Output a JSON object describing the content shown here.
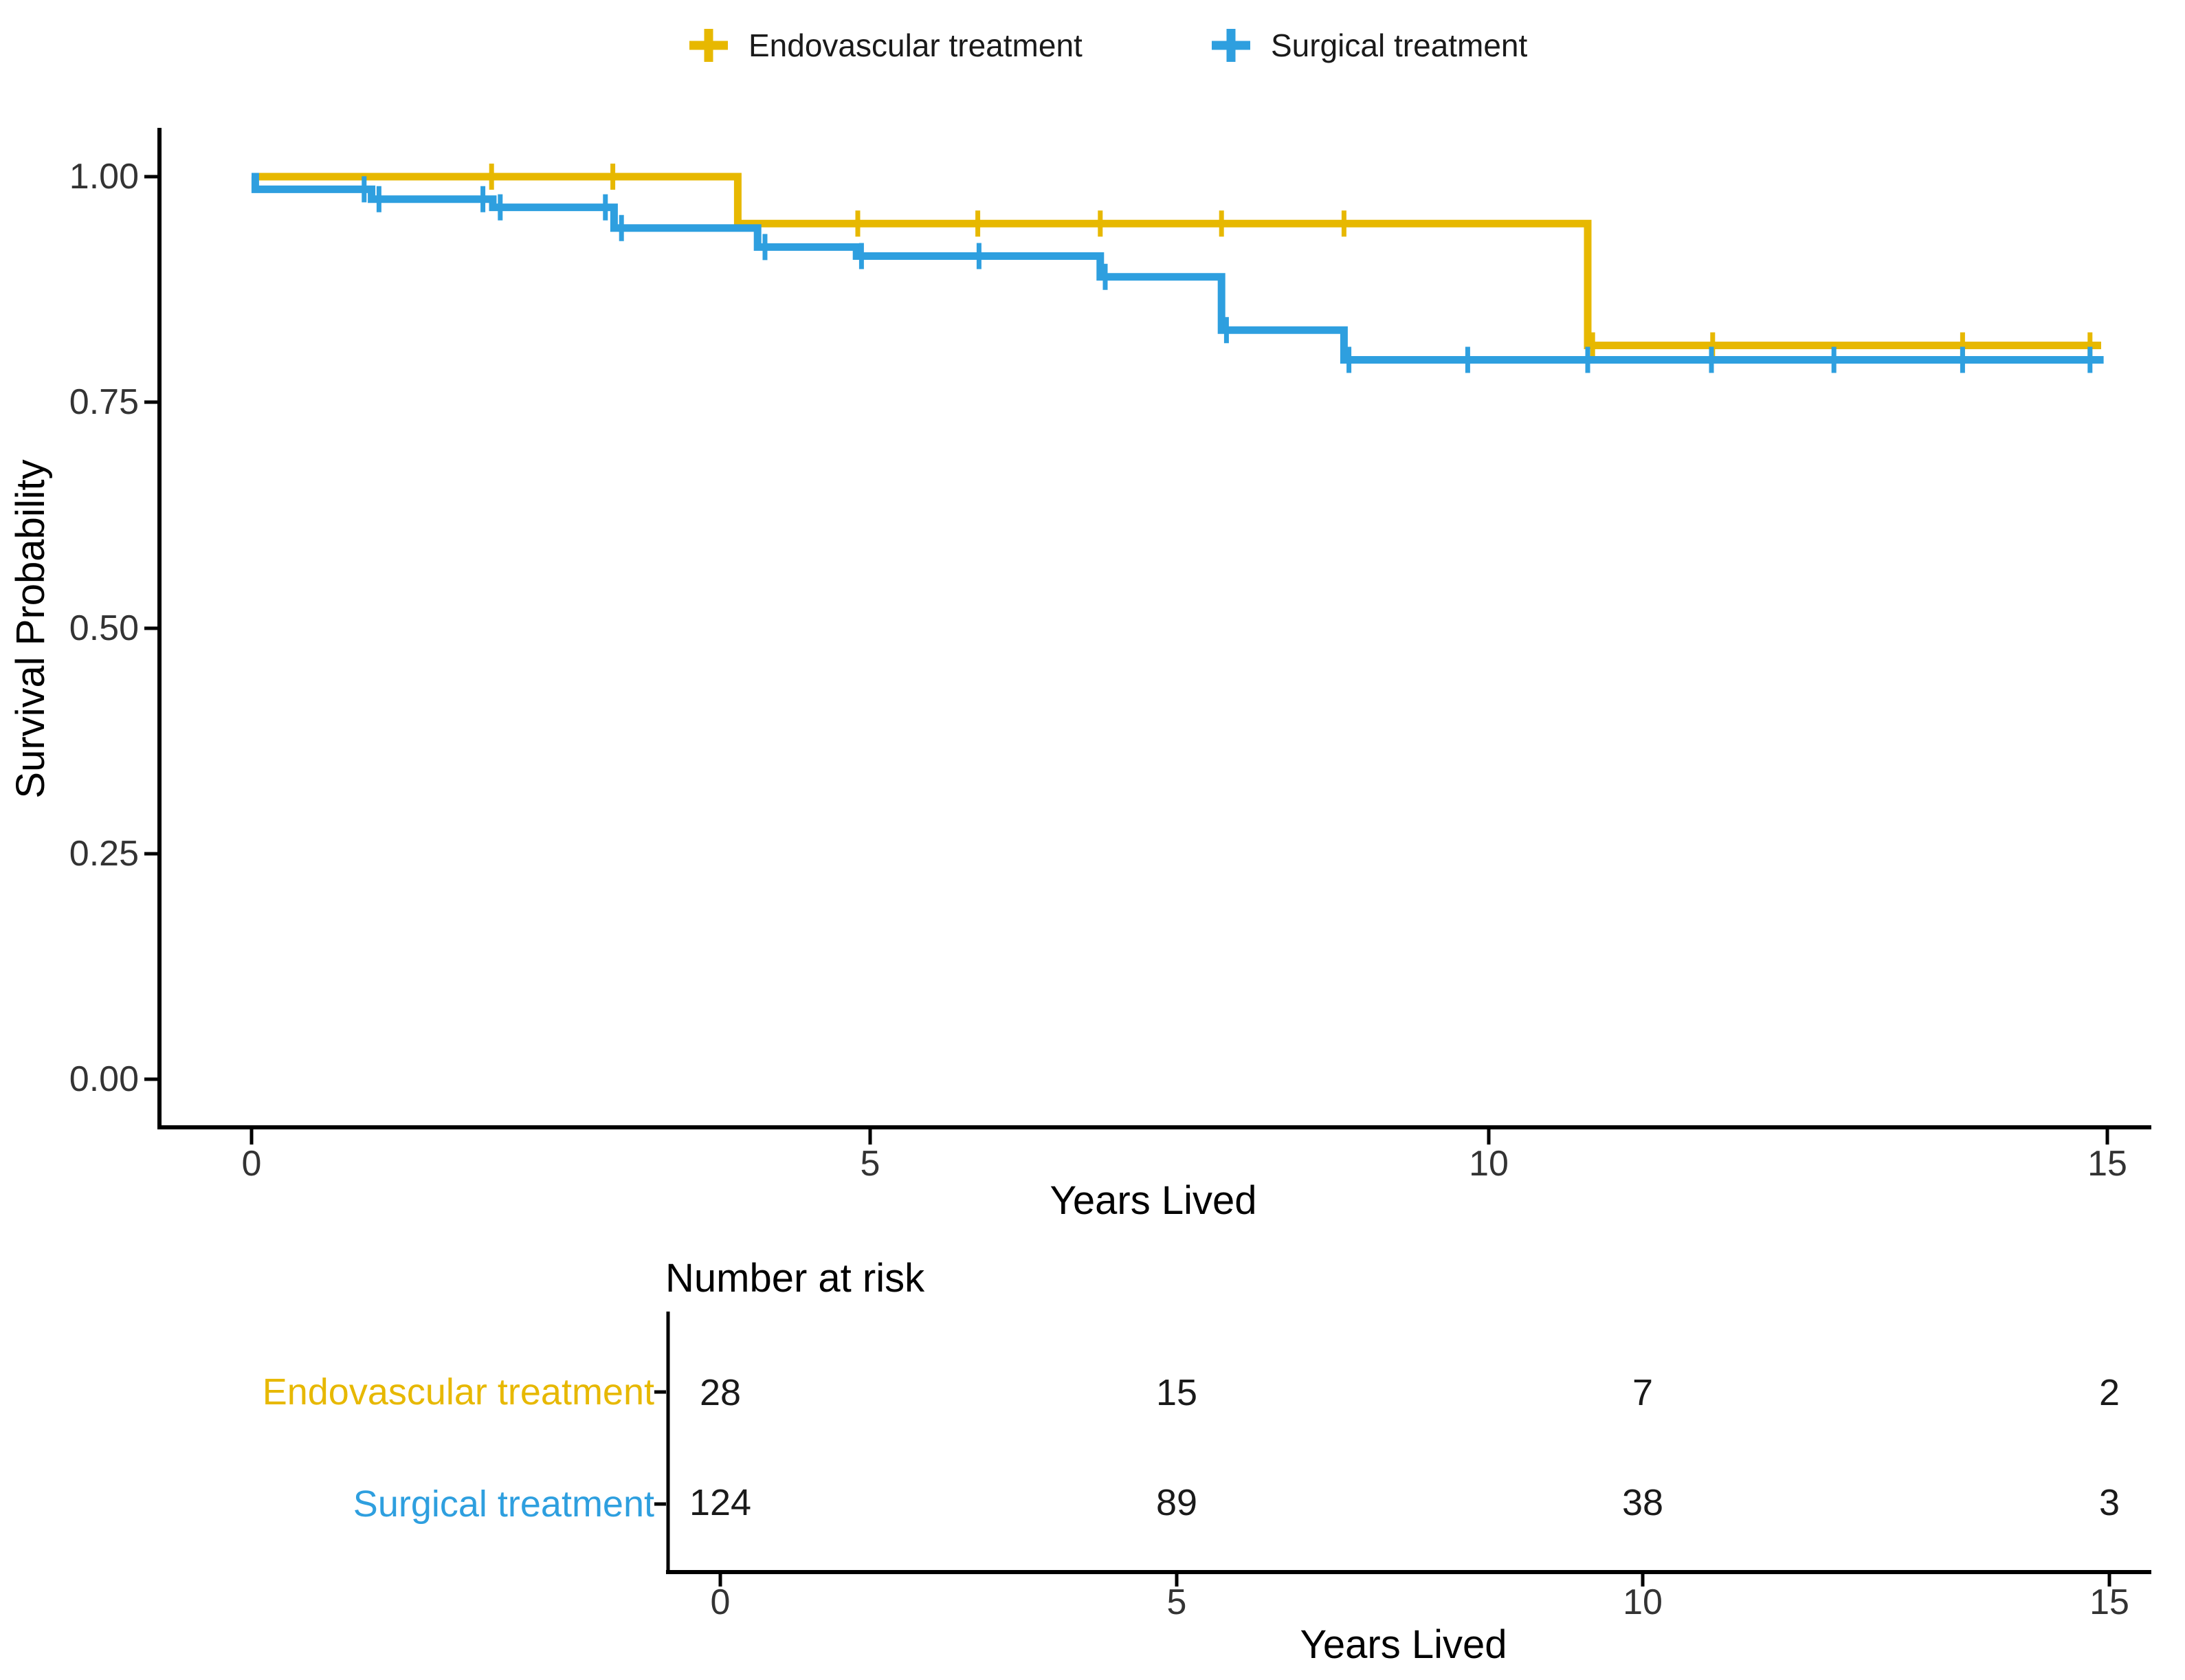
{
  "figure": {
    "background": "#ffffff"
  },
  "legend": {
    "position": "top",
    "items": [
      {
        "label": "Endovascular treatment",
        "color": "#E7B800"
      },
      {
        "label": "Surgical treatment",
        "color": "#2E9FDF"
      }
    ]
  },
  "chart_data": {
    "type": "line",
    "subtype": "kaplan_meier_step_survival",
    "title": "",
    "xlabel": "Years Lived",
    "ylabel": "Survival Probability",
    "xlim": [
      0,
      15.6
    ],
    "ylim": [
      0,
      1.04
    ],
    "grid": false,
    "legend_position": "top",
    "xticks": [
      {
        "t": 0,
        "label": "0"
      },
      {
        "t": 5,
        "label": "5"
      },
      {
        "t": 10,
        "label": "10"
      },
      {
        "t": 15,
        "label": "15"
      }
    ],
    "yticks": [
      {
        "p": 1.0,
        "label": "1.00"
      },
      {
        "p": 0.75,
        "label": "0.75"
      },
      {
        "p": 0.5,
        "label": "0.50"
      },
      {
        "p": 0.25,
        "label": "0.25"
      },
      {
        "p": 0.0,
        "label": "0.00"
      }
    ],
    "series": [
      {
        "id": "endovascular",
        "name": "Endovascular treatment",
        "color": "#E7B800",
        "steps": [
          [
            0,
            1.0
          ],
          [
            3.93,
            1.0
          ],
          [
            3.93,
            0.948
          ],
          [
            10.8,
            0.948
          ],
          [
            10.8,
            0.813
          ],
          [
            14.95,
            0.813
          ]
        ],
        "censors": [
          [
            1.94,
            1.0
          ],
          [
            2.92,
            1.0
          ],
          [
            4.9,
            0.948
          ],
          [
            5.87,
            0.948
          ],
          [
            6.86,
            0.948
          ],
          [
            7.84,
            0.948
          ],
          [
            8.83,
            0.948
          ],
          [
            10.84,
            0.813
          ],
          [
            11.81,
            0.813
          ],
          [
            13.83,
            0.813
          ],
          [
            14.86,
            0.813
          ]
        ]
      },
      {
        "id": "surgical",
        "name": "Surgical treatment",
        "color": "#2E9FDF",
        "steps": [
          [
            0,
            1.0
          ],
          [
            0.03,
            1.0
          ],
          [
            0.03,
            0.986
          ],
          [
            0.97,
            0.986
          ],
          [
            0.97,
            0.975
          ],
          [
            1.95,
            0.975
          ],
          [
            1.95,
            0.966
          ],
          [
            2.93,
            0.966
          ],
          [
            2.93,
            0.943
          ],
          [
            4.09,
            0.943
          ],
          [
            4.09,
            0.922
          ],
          [
            4.89,
            0.922
          ],
          [
            4.89,
            0.912
          ],
          [
            6.86,
            0.912
          ],
          [
            6.86,
            0.889
          ],
          [
            7.84,
            0.889
          ],
          [
            7.84,
            0.83
          ],
          [
            8.83,
            0.83
          ],
          [
            8.83,
            0.797
          ],
          [
            14.97,
            0.797
          ]
        ],
        "censors": [
          [
            0.91,
            0.986
          ],
          [
            1.03,
            0.975
          ],
          [
            1.87,
            0.975
          ],
          [
            2.01,
            0.966
          ],
          [
            2.86,
            0.966
          ],
          [
            2.99,
            0.943
          ],
          [
            4.15,
            0.922
          ],
          [
            4.93,
            0.912
          ],
          [
            5.88,
            0.912
          ],
          [
            6.9,
            0.889
          ],
          [
            7.88,
            0.83
          ],
          [
            8.87,
            0.797
          ],
          [
            9.83,
            0.797
          ],
          [
            10.8,
            0.797
          ],
          [
            11.8,
            0.797
          ],
          [
            12.79,
            0.797
          ],
          [
            13.83,
            0.797
          ],
          [
            14.86,
            0.797
          ]
        ]
      }
    ],
    "number_at_risk": {
      "title": "Number at risk",
      "xlabel": "Years Lived",
      "times": [
        0,
        5,
        10,
        15
      ],
      "time_labels": [
        "0",
        "5",
        "10",
        "15"
      ],
      "rows": [
        {
          "label": "Endovascular treatment",
          "color": "#E7B800",
          "counts": [
            "28",
            "15",
            "7",
            "2"
          ]
        },
        {
          "label": "Surgical treatment",
          "color": "#2E9FDF",
          "counts": [
            "124",
            "89",
            "38",
            "3"
          ]
        }
      ]
    }
  }
}
